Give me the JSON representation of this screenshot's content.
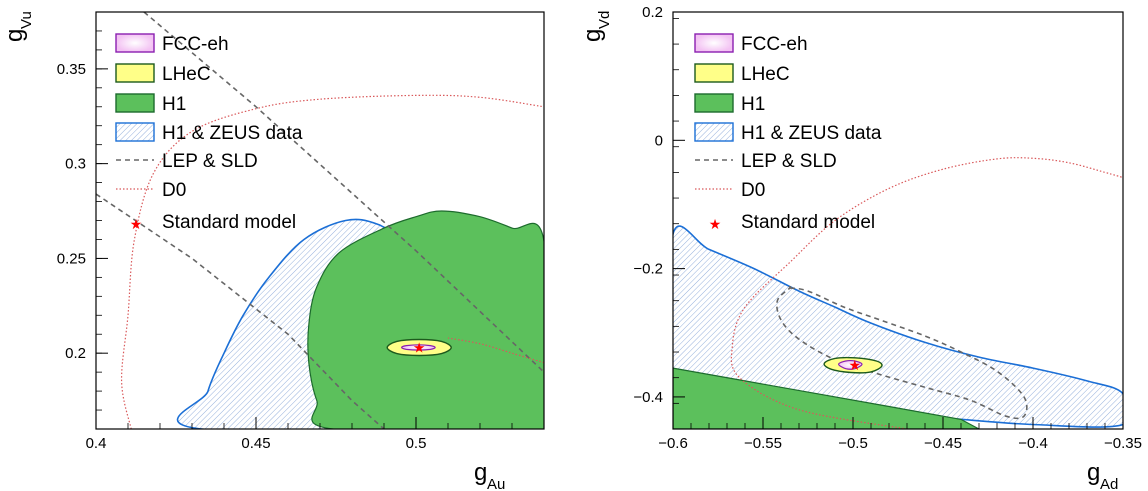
{
  "chart_data": [
    {
      "type": "contour",
      "xlabel": "g",
      "xlabel_sub": "Au",
      "ylabel": "g",
      "ylabel_sub": "Vu",
      "xlim": [
        0.4,
        0.54
      ],
      "ylim": [
        0.16,
        0.38
      ],
      "xticks": [
        0.4,
        0.45,
        0.5
      ],
      "xtick_labels": [
        "0.4",
        "0.45",
        "0.5"
      ],
      "yticks": [
        0.2,
        0.25,
        0.3,
        0.35
      ],
      "ytick_labels": [
        "0.2",
        "0.25",
        "0.3",
        "0.35"
      ],
      "standard_model": [
        0.501,
        0.203
      ],
      "legend": {
        "fcc": "FCC-eh",
        "lhec": "LHeC",
        "h1": "H1",
        "hz": "H1 & ZEUS data",
        "lep": "LEP & SLD",
        "d0": "D0",
        "sm": "Standard model"
      },
      "series": {
        "fcc": [
          [
            0.4955,
            0.203
          ],
          [
            0.497,
            0.204
          ],
          [
            0.501,
            0.2044
          ],
          [
            0.5045,
            0.204
          ],
          [
            0.506,
            0.203
          ],
          [
            0.5045,
            0.202
          ],
          [
            0.501,
            0.2016
          ],
          [
            0.497,
            0.202
          ]
        ],
        "lhec": [
          [
            0.491,
            0.203
          ],
          [
            0.494,
            0.2062
          ],
          [
            0.501,
            0.2072
          ],
          [
            0.508,
            0.2062
          ],
          [
            0.511,
            0.203
          ],
          [
            0.508,
            0.1998
          ],
          [
            0.501,
            0.1988
          ],
          [
            0.494,
            0.1998
          ]
        ],
        "h1": [
          [
            0.474,
            0.16
          ],
          [
            0.469,
            0.175
          ],
          [
            0.4665,
            0.195
          ],
          [
            0.4665,
            0.215
          ],
          [
            0.469,
            0.235
          ],
          [
            0.476,
            0.253
          ],
          [
            0.49,
            0.266
          ],
          [
            0.5,
            0.272
          ],
          [
            0.508,
            0.275
          ],
          [
            0.52,
            0.272
          ],
          [
            0.53,
            0.266
          ],
          [
            0.54,
            0.259
          ],
          [
            0.54,
            0.16
          ]
        ],
        "hz": [
          [
            0.433,
            0.16
          ],
          [
            0.435,
            0.18
          ],
          [
            0.44,
            0.2
          ],
          [
            0.446,
            0.22
          ],
          [
            0.454,
            0.24
          ],
          [
            0.465,
            0.26
          ],
          [
            0.478,
            0.27
          ],
          [
            0.488,
            0.268
          ],
          [
            0.5,
            0.256
          ],
          [
            0.515,
            0.24
          ],
          [
            0.53,
            0.225
          ],
          [
            0.54,
            0.21
          ],
          [
            0.54,
            0.16
          ]
        ],
        "lep_a": [
          [
            0.415,
            0.38
          ],
          [
            0.45,
            0.33
          ],
          [
            0.5,
            0.254
          ],
          [
            0.54,
            0.19
          ]
        ],
        "lep_b": [
          [
            0.4,
            0.284
          ],
          [
            0.43,
            0.25
          ],
          [
            0.46,
            0.21
          ],
          [
            0.48,
            0.175
          ],
          [
            0.49,
            0.16
          ]
        ],
        "d0": [
          [
            0.411,
            0.16
          ],
          [
            0.408,
            0.185
          ],
          [
            0.41,
            0.22
          ],
          [
            0.412,
            0.26
          ],
          [
            0.418,
            0.295
          ],
          [
            0.43,
            0.317
          ],
          [
            0.45,
            0.329
          ],
          [
            0.47,
            0.334
          ],
          [
            0.5,
            0.336
          ],
          [
            0.52,
            0.335
          ],
          [
            0.54,
            0.33
          ]
        ],
        "d0_tail": [
          [
            0.54,
            0.195
          ],
          [
            0.53,
            0.2
          ],
          [
            0.52,
            0.205
          ],
          [
            0.51,
            0.208
          ]
        ]
      }
    },
    {
      "type": "contour",
      "xlabel": "g",
      "xlabel_sub": "Ad",
      "ylabel": "g",
      "ylabel_sub": "Vd",
      "xlim": [
        -0.6,
        -0.35
      ],
      "ylim": [
        -0.45,
        0.2
      ],
      "xticks": [
        -0.6,
        -0.55,
        -0.5,
        -0.45,
        -0.4,
        -0.35
      ],
      "xtick_labels": [
        "−0.6",
        "−0.55",
        "−0.5",
        "−0.45",
        "−0.4",
        "−0.35"
      ],
      "yticks": [
        -0.4,
        -0.2,
        0.0,
        0.2
      ],
      "ytick_labels": [
        "−0.4",
        "−0.2",
        "0",
        "0.2"
      ],
      "standard_model": [
        -0.499,
        -0.35
      ],
      "legend": {
        "fcc": "FCC-eh",
        "lhec": "LHeC",
        "h1": "H1",
        "hz": "H1 & ZEUS data",
        "lep": "LEP & SLD",
        "d0": "D0",
        "sm": "Standard model"
      },
      "series": {
        "fcc": [
          [
            -0.508,
            -0.349
          ],
          [
            -0.504,
            -0.344
          ],
          [
            -0.499,
            -0.344
          ],
          [
            -0.495,
            -0.349
          ],
          [
            -0.499,
            -0.356
          ],
          [
            -0.504,
            -0.356
          ]
        ],
        "lhec": [
          [
            -0.516,
            -0.348
          ],
          [
            -0.51,
            -0.34
          ],
          [
            -0.499,
            -0.339
          ],
          [
            -0.487,
            -0.344
          ],
          [
            -0.484,
            -0.352
          ],
          [
            -0.49,
            -0.361
          ],
          [
            -0.501,
            -0.362
          ],
          [
            -0.512,
            -0.357
          ]
        ],
        "h1": [
          [
            -0.6,
            -0.355
          ],
          [
            -0.56,
            -0.375
          ],
          [
            -0.52,
            -0.395
          ],
          [
            -0.48,
            -0.415
          ],
          [
            -0.44,
            -0.435
          ],
          [
            -0.43,
            -0.45
          ],
          [
            -0.6,
            -0.45
          ]
        ],
        "hz": [
          [
            -0.6,
            -0.146
          ],
          [
            -0.58,
            -0.17
          ],
          [
            -0.555,
            -0.2
          ],
          [
            -0.53,
            -0.235
          ],
          [
            -0.51,
            -0.26
          ],
          [
            -0.49,
            -0.285
          ],
          [
            -0.46,
            -0.315
          ],
          [
            -0.43,
            -0.338
          ],
          [
            -0.4,
            -0.355
          ],
          [
            -0.37,
            -0.375
          ],
          [
            -0.35,
            -0.395
          ],
          [
            -0.35,
            -0.443
          ],
          [
            -0.4,
            -0.443
          ],
          [
            -0.45,
            -0.433
          ],
          [
            -0.5,
            -0.425
          ],
          [
            -0.55,
            -0.403
          ],
          [
            -0.6,
            -0.38
          ]
        ],
        "lep": [
          [
            -0.535,
            -0.23
          ],
          [
            -0.525,
            -0.235
          ],
          [
            -0.505,
            -0.26
          ],
          [
            -0.485,
            -0.28
          ],
          [
            -0.46,
            -0.305
          ],
          [
            -0.44,
            -0.33
          ],
          [
            -0.42,
            -0.36
          ],
          [
            -0.405,
            -0.4
          ],
          [
            -0.405,
            -0.43
          ],
          [
            -0.415,
            -0.43
          ],
          [
            -0.435,
            -0.405
          ],
          [
            -0.46,
            -0.385
          ],
          [
            -0.485,
            -0.365
          ],
          [
            -0.51,
            -0.342
          ],
          [
            -0.53,
            -0.31
          ],
          [
            -0.54,
            -0.28
          ],
          [
            -0.542,
            -0.25
          ],
          [
            -0.535,
            -0.23
          ]
        ],
        "d0": [
          [
            -0.47,
            -0.45
          ],
          [
            -0.53,
            -0.42
          ],
          [
            -0.563,
            -0.37
          ],
          [
            -0.567,
            -0.32
          ],
          [
            -0.56,
            -0.26
          ],
          [
            -0.535,
            -0.19
          ],
          [
            -0.51,
            -0.125
          ],
          [
            -0.48,
            -0.075
          ],
          [
            -0.45,
            -0.045
          ],
          [
            -0.42,
            -0.029
          ],
          [
            -0.4,
            -0.028
          ],
          [
            -0.38,
            -0.035
          ],
          [
            -0.36,
            -0.05
          ],
          [
            -0.35,
            -0.058
          ]
        ]
      }
    }
  ]
}
